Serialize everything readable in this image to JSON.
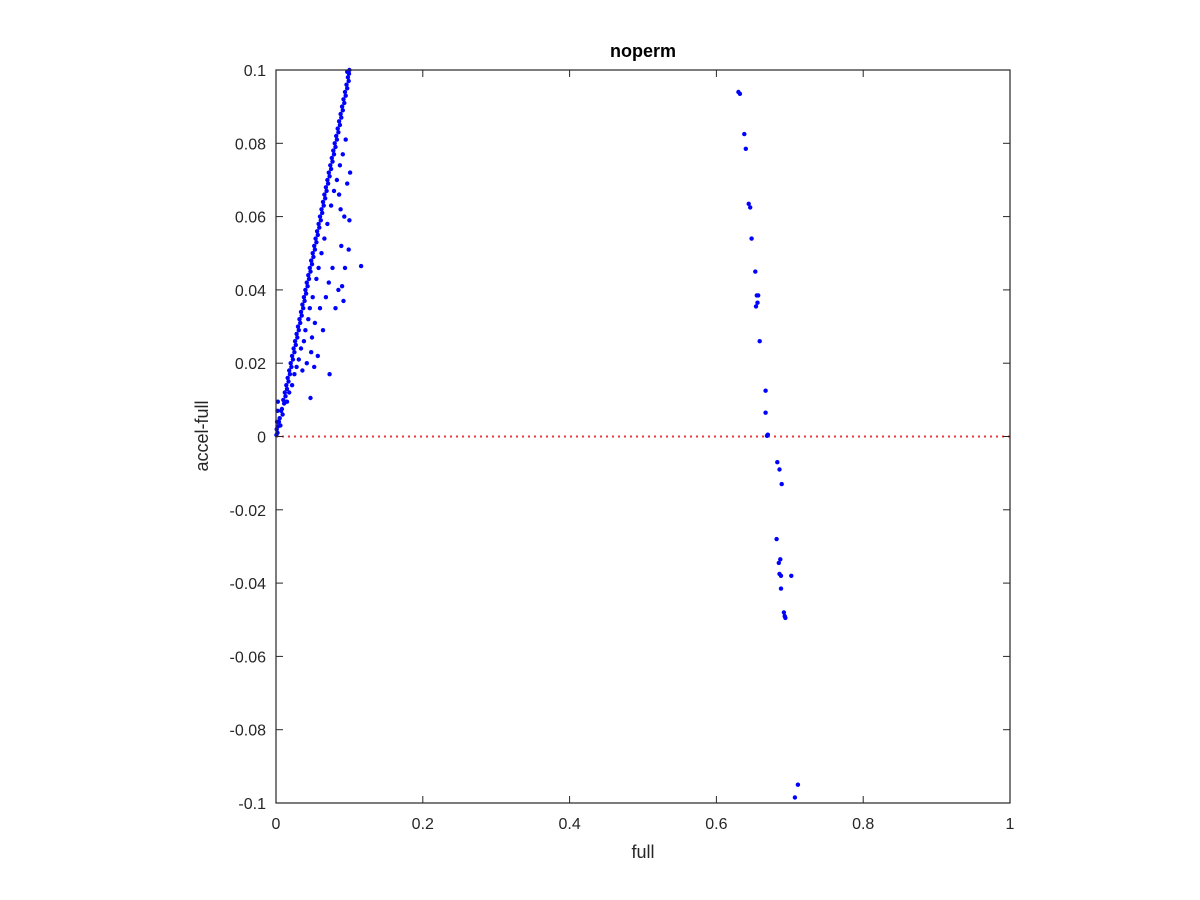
{
  "chart_data": {
    "type": "scatter",
    "title": "noperm",
    "xlabel": "full",
    "ylabel": "accel-full",
    "xlim": [
      0,
      1
    ],
    "ylim": [
      -0.1,
      0.1
    ],
    "xticks": [
      "0",
      "0.2",
      "0.4",
      "0.6",
      "0.8",
      "1"
    ],
    "xtick_values": [
      0,
      0.2,
      0.4,
      0.6,
      0.8,
      1
    ],
    "yticks": [
      "-0.1",
      "-0.08",
      "-0.06",
      "-0.04",
      "-0.02",
      "0",
      "0.02",
      "0.04",
      "0.06",
      "0.08",
      "0.1"
    ],
    "ytick_values": [
      -0.1,
      -0.08,
      -0.06,
      -0.04,
      -0.02,
      0,
      0.02,
      0.04,
      0.06,
      0.08,
      0.1
    ],
    "grid": false,
    "point_color": "#0000ff",
    "reference_line": {
      "y": 0,
      "color": "#e8383d",
      "style": "dotted"
    },
    "points": [
      [
        0.0005,
        0.0004
      ],
      [
        0.001,
        0.002
      ],
      [
        0.0015,
        0.004
      ],
      [
        0.002,
        0.001
      ],
      [
        0.002,
        0.007
      ],
      [
        0.0025,
        0.0095
      ],
      [
        0.003,
        0.0028
      ],
      [
        0.004,
        0.004
      ],
      [
        0.005,
        0.005
      ],
      [
        0.006,
        0.003
      ],
      [
        0.007,
        0.007
      ],
      [
        0.008,
        0.0075
      ],
      [
        0.009,
        0.006
      ],
      [
        0.01,
        0.01
      ],
      [
        0.011,
        0.009
      ],
      [
        0.012,
        0.012
      ],
      [
        0.013,
        0.011
      ],
      [
        0.014,
        0.014
      ],
      [
        0.015,
        0.013
      ],
      [
        0.016,
        0.016
      ],
      [
        0.017,
        0.015
      ],
      [
        0.018,
        0.018
      ],
      [
        0.019,
        0.017
      ],
      [
        0.02,
        0.02
      ],
      [
        0.021,
        0.019
      ],
      [
        0.022,
        0.022
      ],
      [
        0.023,
        0.021
      ],
      [
        0.024,
        0.024
      ],
      [
        0.025,
        0.023
      ],
      [
        0.026,
        0.026
      ],
      [
        0.027,
        0.025
      ],
      [
        0.028,
        0.028
      ],
      [
        0.029,
        0.027
      ],
      [
        0.03,
        0.03
      ],
      [
        0.031,
        0.029
      ],
      [
        0.032,
        0.032
      ],
      [
        0.033,
        0.031
      ],
      [
        0.034,
        0.034
      ],
      [
        0.035,
        0.033
      ],
      [
        0.036,
        0.036
      ],
      [
        0.037,
        0.035
      ],
      [
        0.038,
        0.038
      ],
      [
        0.039,
        0.037
      ],
      [
        0.04,
        0.04
      ],
      [
        0.041,
        0.039
      ],
      [
        0.042,
        0.042
      ],
      [
        0.043,
        0.041
      ],
      [
        0.044,
        0.044
      ],
      [
        0.045,
        0.043
      ],
      [
        0.046,
        0.046
      ],
      [
        0.047,
        0.045
      ],
      [
        0.048,
        0.048
      ],
      [
        0.049,
        0.047
      ],
      [
        0.05,
        0.05
      ],
      [
        0.051,
        0.049
      ],
      [
        0.052,
        0.052
      ],
      [
        0.053,
        0.051
      ],
      [
        0.054,
        0.054
      ],
      [
        0.055,
        0.053
      ],
      [
        0.056,
        0.056
      ],
      [
        0.057,
        0.055
      ],
      [
        0.058,
        0.058
      ],
      [
        0.059,
        0.057
      ],
      [
        0.06,
        0.06
      ],
      [
        0.061,
        0.059
      ],
      [
        0.062,
        0.062
      ],
      [
        0.063,
        0.061
      ],
      [
        0.064,
        0.064
      ],
      [
        0.065,
        0.063
      ],
      [
        0.066,
        0.066
      ],
      [
        0.067,
        0.065
      ],
      [
        0.068,
        0.068
      ],
      [
        0.069,
        0.067
      ],
      [
        0.07,
        0.07
      ],
      [
        0.071,
        0.069
      ],
      [
        0.072,
        0.072
      ],
      [
        0.073,
        0.071
      ],
      [
        0.074,
        0.074
      ],
      [
        0.075,
        0.073
      ],
      [
        0.076,
        0.076
      ],
      [
        0.077,
        0.075
      ],
      [
        0.078,
        0.078
      ],
      [
        0.079,
        0.077
      ],
      [
        0.08,
        0.08
      ],
      [
        0.081,
        0.079
      ],
      [
        0.082,
        0.082
      ],
      [
        0.083,
        0.081
      ],
      [
        0.084,
        0.084
      ],
      [
        0.085,
        0.083
      ],
      [
        0.086,
        0.086
      ],
      [
        0.087,
        0.085
      ],
      [
        0.088,
        0.088
      ],
      [
        0.089,
        0.087
      ],
      [
        0.09,
        0.09
      ],
      [
        0.091,
        0.089
      ],
      [
        0.092,
        0.092
      ],
      [
        0.093,
        0.091
      ],
      [
        0.094,
        0.094
      ],
      [
        0.095,
        0.093
      ],
      [
        0.096,
        0.096
      ],
      [
        0.097,
        0.095
      ],
      [
        0.098,
        0.098
      ],
      [
        0.099,
        0.097
      ],
      [
        0.1,
        0.1
      ],
      [
        0.0995,
        0.099
      ],
      [
        0.097,
        0.0995
      ],
      [
        0.015,
        0.0095
      ],
      [
        0.018,
        0.012
      ],
      [
        0.022,
        0.014
      ],
      [
        0.025,
        0.017
      ],
      [
        0.028,
        0.019
      ],
      [
        0.031,
        0.021
      ],
      [
        0.034,
        0.024
      ],
      [
        0.036,
        0.018
      ],
      [
        0.038,
        0.026
      ],
      [
        0.04,
        0.029
      ],
      [
        0.042,
        0.02
      ],
      [
        0.044,
        0.032
      ],
      [
        0.046,
        0.035
      ],
      [
        0.047,
        0.0105
      ],
      [
        0.048,
        0.023
      ],
      [
        0.049,
        0.027
      ],
      [
        0.05,
        0.038
      ],
      [
        0.052,
        0.019
      ],
      [
        0.053,
        0.031
      ],
      [
        0.055,
        0.043
      ],
      [
        0.057,
        0.022
      ],
      [
        0.058,
        0.046
      ],
      [
        0.06,
        0.035
      ],
      [
        0.062,
        0.05
      ],
      [
        0.064,
        0.029
      ],
      [
        0.066,
        0.054
      ],
      [
        0.068,
        0.038
      ],
      [
        0.07,
        0.058
      ],
      [
        0.072,
        0.042
      ],
      [
        0.073,
        0.017
      ],
      [
        0.075,
        0.063
      ],
      [
        0.077,
        0.046
      ],
      [
        0.079,
        0.067
      ],
      [
        0.081,
        0.035
      ],
      [
        0.083,
        0.07
      ],
      [
        0.085,
        0.04
      ],
      [
        0.087,
        0.074
      ],
      [
        0.089,
        0.052
      ],
      [
        0.091,
        0.077
      ],
      [
        0.093,
        0.06
      ],
      [
        0.095,
        0.081
      ],
      [
        0.097,
        0.069
      ],
      [
        0.101,
        0.072
      ],
      [
        0.1,
        0.059
      ],
      [
        0.099,
        0.051
      ],
      [
        0.116,
        0.0465
      ],
      [
        0.094,
        0.046
      ],
      [
        0.09,
        0.041
      ],
      [
        0.086,
        0.066
      ],
      [
        0.088,
        0.062
      ],
      [
        0.092,
        0.037
      ],
      [
        0.63,
        0.094
      ],
      [
        0.632,
        0.0935
      ],
      [
        0.638,
        0.0825
      ],
      [
        0.64,
        0.0785
      ],
      [
        0.644,
        0.0635
      ],
      [
        0.646,
        0.0625
      ],
      [
        0.648,
        0.054
      ],
      [
        0.653,
        0.045
      ],
      [
        0.655,
        0.0385
      ],
      [
        0.657,
        0.0385
      ],
      [
        0.656,
        0.0365
      ],
      [
        0.654,
        0.0355
      ],
      [
        0.659,
        0.026
      ],
      [
        0.667,
        0.0125
      ],
      [
        0.667,
        0.0065
      ],
      [
        0.67,
        0.0005
      ],
      [
        0.669,
        0.0002
      ],
      [
        0.683,
        -0.007
      ],
      [
        0.686,
        -0.009
      ],
      [
        0.689,
        -0.013
      ],
      [
        0.682,
        -0.028
      ],
      [
        0.687,
        -0.0335
      ],
      [
        0.685,
        -0.0345
      ],
      [
        0.686,
        -0.0375
      ],
      [
        0.688,
        -0.038
      ],
      [
        0.702,
        -0.038
      ],
      [
        0.688,
        -0.0415
      ],
      [
        0.692,
        -0.048
      ],
      [
        0.693,
        -0.049
      ],
      [
        0.694,
        -0.0495
      ],
      [
        0.711,
        -0.095
      ],
      [
        0.707,
        -0.0985
      ]
    ]
  }
}
